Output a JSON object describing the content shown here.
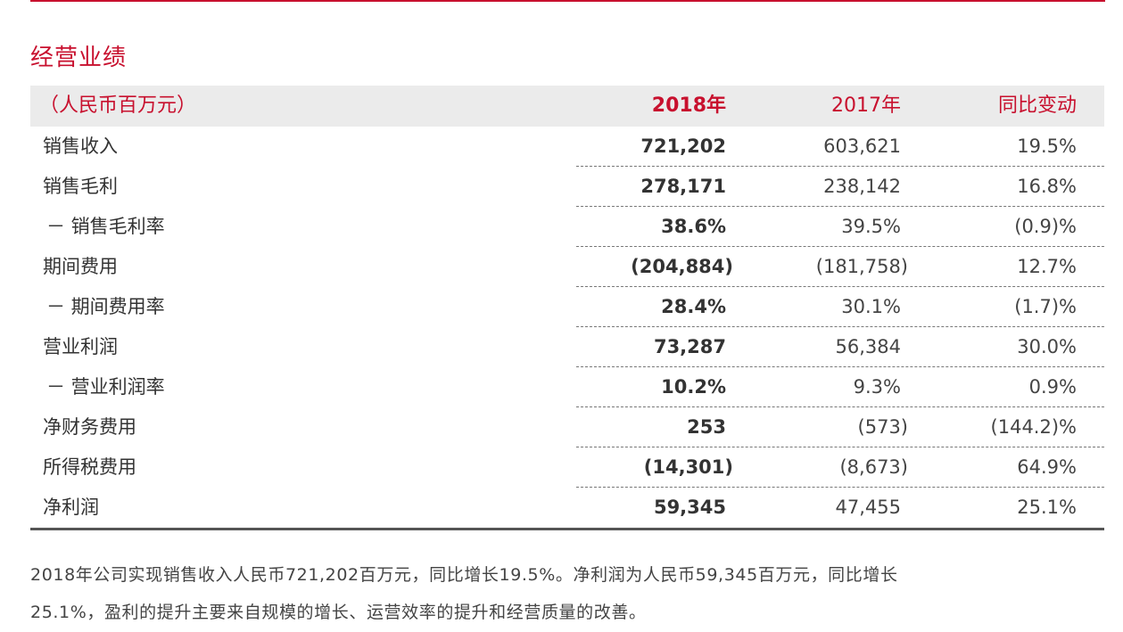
{
  "section_title": "经营业绩",
  "table": {
    "header": {
      "unit": "（人民币百万元）",
      "col_2018": "2018年",
      "col_2017": "2017年",
      "col_yoy": "同比变动"
    },
    "rows": [
      {
        "label": "销售收入",
        "v2018": "721,202",
        "v2017": "603,621",
        "yoy": "19.5%"
      },
      {
        "label": "销售毛利",
        "v2018": "278,171",
        "v2017": "238,142",
        "yoy": "16.8%"
      },
      {
        "label": "－ 销售毛利率",
        "v2018": "38.6%",
        "v2017": "39.5%",
        "yoy": "(0.9)%"
      },
      {
        "label": "期间费用",
        "v2018": "(204,884)",
        "v2017": "(181,758)",
        "yoy": "12.7%"
      },
      {
        "label": "－ 期间费用率",
        "v2018": "28.4%",
        "v2017": "30.1%",
        "yoy": "(1.7)%"
      },
      {
        "label": "营业利润",
        "v2018": "73,287",
        "v2017": "56,384",
        "yoy": "30.0%"
      },
      {
        "label": "－ 营业利润率",
        "v2018": "10.2%",
        "v2017": "9.3%",
        "yoy": "0.9%"
      },
      {
        "label": "净财务费用",
        "v2018": "253",
        "v2017": "(573)",
        "yoy": "(144.2)%"
      },
      {
        "label": "所得税费用",
        "v2018": "(14,301)",
        "v2017": "(8,673)",
        "yoy": "64.9%"
      },
      {
        "label": "净利润",
        "v2018": "59,345",
        "v2017": "47,455",
        "yoy": "25.1%"
      }
    ]
  },
  "paragraph": {
    "line1": "2018年公司实现销售收入人民币721,202百万元，同比增长19.5%。净利润为人民币59,345百万元，同比增长",
    "line2": "25.1%，盈利的提升主要来自规模的增长、运营效率的提升和经营质量的改善。"
  },
  "colors": {
    "accent": "#c8102e",
    "header_bg": "#ebebeb",
    "text": "#333333"
  }
}
